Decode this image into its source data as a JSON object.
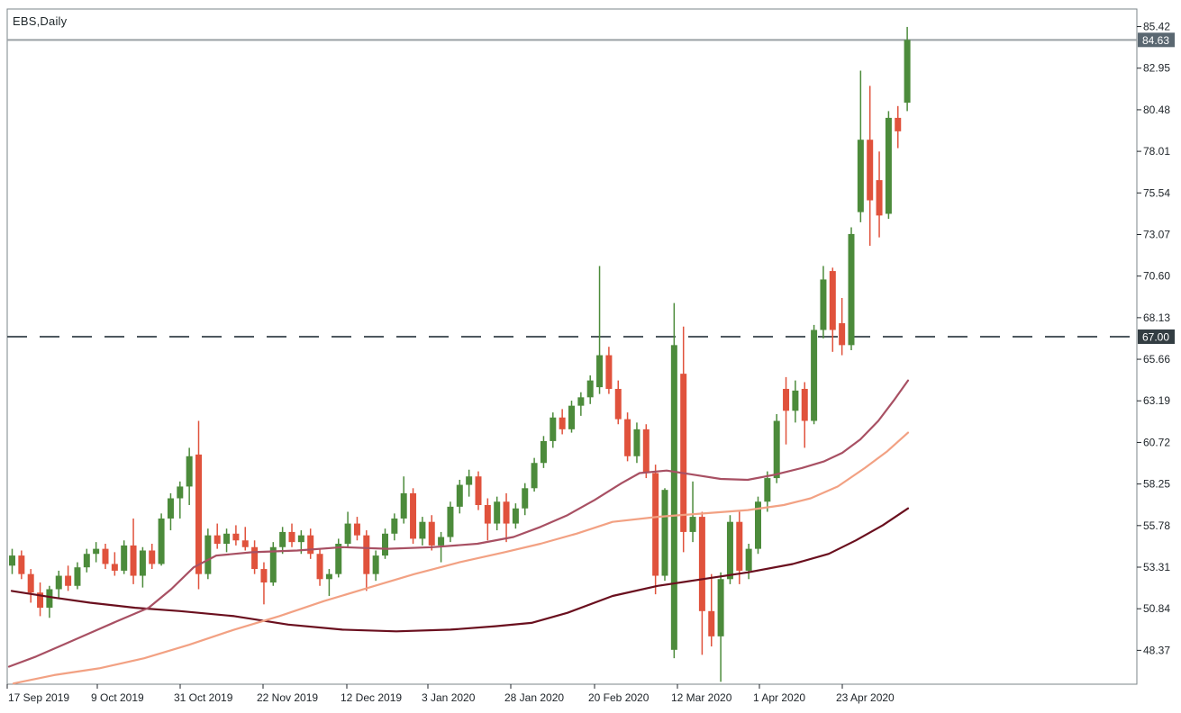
{
  "window": {
    "title": "EBS,Daily"
  },
  "chart_data": {
    "type": "candlestick",
    "symbol": "EBS",
    "timeframe": "Daily",
    "title": "EBS,Daily",
    "x_axis": {
      "labels": [
        "17 Sep 2019",
        "9 Oct 2019",
        "31 Oct 2019",
        "22 Nov 2019",
        "12 Dec 2019",
        "3 Jan 2020",
        "28 Jan 2020",
        "20 Feb 2020",
        "12 Mar 2020",
        "1 Apr 2020",
        "23 Apr 2020"
      ],
      "tick_x": [
        3,
        103,
        195,
        287,
        380,
        470,
        562,
        655,
        747,
        838,
        930
      ]
    },
    "y_axis": {
      "labels": [
        "85.42",
        "82.95",
        "80.48",
        "78.01",
        "75.54",
        "73.07",
        "70.60",
        "68.13",
        "65.66",
        "63.19",
        "60.72",
        "58.25",
        "55.78",
        "53.31",
        "50.84",
        "48.37"
      ],
      "range": [
        46.0,
        86.2
      ],
      "grid": "off"
    },
    "price_lines": [
      {
        "label": "84.63",
        "price": 84.63,
        "style": "solid",
        "line_color": "#9aa1a5",
        "box_color": "#5a6771",
        "name": "bid-price-line"
      },
      {
        "label": "67.00",
        "price": 67.0,
        "style": "dashed",
        "line_color": "#4e585f",
        "box_color": "#333d42",
        "name": "horizontal-level-line"
      }
    ],
    "candles": {
      "ohlc_order": [
        "open",
        "high",
        "low",
        "close"
      ],
      "ohlc": [
        [
          53.4,
          54.4,
          52.9,
          54.0
        ],
        [
          54.0,
          54.3,
          52.6,
          52.9
        ],
        [
          52.9,
          53.2,
          51.2,
          51.8
        ],
        [
          51.8,
          52.4,
          50.4,
          50.9
        ],
        [
          50.9,
          52.2,
          50.3,
          52.0
        ],
        [
          52.0,
          53.1,
          51.5,
          52.8
        ],
        [
          52.8,
          53.4,
          51.9,
          52.2
        ],
        [
          52.2,
          53.6,
          52.0,
          53.3
        ],
        [
          53.3,
          54.4,
          53.0,
          54.1
        ],
        [
          54.1,
          54.8,
          53.6,
          54.4
        ],
        [
          54.4,
          54.7,
          53.2,
          53.5
        ],
        [
          53.5,
          54.2,
          52.8,
          53.1
        ],
        [
          53.1,
          54.9,
          52.9,
          54.6
        ],
        [
          54.6,
          56.2,
          52.3,
          52.8
        ],
        [
          52.8,
          54.5,
          52.1,
          54.3
        ],
        [
          54.3,
          54.7,
          53.2,
          53.5
        ],
        [
          53.5,
          56.5,
          53.4,
          56.2
        ],
        [
          56.2,
          57.7,
          55.5,
          57.4
        ],
        [
          57.4,
          58.4,
          56.2,
          58.1
        ],
        [
          58.1,
          60.4,
          57.0,
          59.9
        ],
        [
          60.0,
          62.0,
          52.0,
          52.9
        ],
        [
          52.9,
          55.6,
          52.6,
          55.2
        ],
        [
          55.2,
          55.9,
          54.4,
          54.7
        ],
        [
          54.7,
          55.6,
          54.2,
          55.3
        ],
        [
          55.3,
          55.8,
          54.6,
          54.9
        ],
        [
          54.9,
          55.7,
          54.3,
          54.5
        ],
        [
          54.5,
          54.9,
          52.9,
          53.2
        ],
        [
          53.2,
          53.6,
          51.1,
          52.4
        ],
        [
          52.4,
          54.8,
          52.2,
          54.5
        ],
        [
          54.5,
          55.7,
          54.1,
          55.4
        ],
        [
          55.4,
          55.9,
          54.5,
          54.8
        ],
        [
          54.8,
          55.5,
          54.1,
          55.2
        ],
        [
          55.2,
          55.6,
          53.8,
          54.1
        ],
        [
          54.1,
          54.4,
          52.2,
          52.6
        ],
        [
          52.6,
          53.2,
          51.6,
          52.9
        ],
        [
          52.9,
          55.0,
          52.7,
          54.7
        ],
        [
          54.7,
          56.6,
          54.5,
          55.9
        ],
        [
          55.9,
          56.3,
          54.9,
          55.2
        ],
        [
          55.2,
          55.5,
          51.9,
          52.9
        ],
        [
          52.9,
          54.3,
          52.5,
          54.0
        ],
        [
          54.0,
          55.6,
          53.8,
          55.3
        ],
        [
          55.3,
          56.5,
          54.9,
          56.2
        ],
        [
          56.2,
          58.7,
          55.9,
          57.7
        ],
        [
          57.7,
          58.0,
          54.7,
          55.0
        ],
        [
          55.0,
          56.3,
          54.6,
          56.0
        ],
        [
          56.0,
          56.4,
          54.3,
          54.6
        ],
        [
          54.6,
          55.4,
          53.6,
          55.1
        ],
        [
          55.1,
          57.2,
          54.8,
          56.9
        ],
        [
          56.9,
          58.5,
          56.5,
          58.2
        ],
        [
          58.2,
          59.1,
          57.5,
          58.7
        ],
        [
          58.7,
          59.0,
          56.7,
          57.0
        ],
        [
          57.0,
          57.4,
          54.9,
          55.9
        ],
        [
          55.9,
          57.5,
          55.5,
          57.2
        ],
        [
          57.2,
          57.7,
          54.8,
          55.9
        ],
        [
          55.9,
          57.1,
          55.6,
          56.8
        ],
        [
          56.8,
          58.3,
          56.4,
          58.0
        ],
        [
          58.0,
          59.8,
          57.8,
          59.5
        ],
        [
          59.5,
          61.1,
          59.2,
          60.8
        ],
        [
          60.8,
          62.5,
          60.4,
          62.2
        ],
        [
          62.2,
          62.7,
          61.2,
          61.5
        ],
        [
          61.5,
          63.2,
          61.3,
          62.9
        ],
        [
          62.9,
          63.7,
          62.3,
          63.4
        ],
        [
          63.4,
          64.7,
          63.0,
          64.4
        ],
        [
          64.0,
          71.2,
          63.6,
          65.9
        ],
        [
          65.9,
          66.4,
          63.6,
          63.9
        ],
        [
          63.9,
          64.4,
          61.8,
          62.1
        ],
        [
          62.1,
          62.5,
          59.6,
          59.9
        ],
        [
          59.9,
          61.9,
          59.5,
          61.5
        ],
        [
          61.5,
          61.8,
          58.6,
          58.9
        ],
        [
          58.9,
          59.4,
          51.7,
          52.8
        ],
        [
          52.8,
          58.0,
          52.5,
          57.9
        ],
        [
          48.4,
          69.0,
          47.9,
          66.5
        ],
        [
          64.8,
          67.6,
          54.2,
          55.4
        ],
        [
          55.4,
          58.4,
          54.8,
          56.3
        ],
        [
          56.3,
          56.6,
          48.1,
          50.7
        ],
        [
          50.7,
          52.9,
          48.6,
          49.2
        ],
        [
          49.2,
          53.0,
          46.5,
          52.6
        ],
        [
          52.6,
          56.4,
          52.3,
          56.0
        ],
        [
          56.0,
          56.6,
          52.3,
          53.1
        ],
        [
          53.1,
          54.7,
          52.6,
          54.4
        ],
        [
          54.4,
          57.5,
          54.1,
          57.2
        ],
        [
          57.2,
          59.0,
          56.6,
          58.6
        ],
        [
          58.6,
          62.4,
          58.3,
          62.0
        ],
        [
          63.9,
          64.6,
          60.6,
          62.6
        ],
        [
          62.6,
          64.4,
          61.9,
          63.8
        ],
        [
          63.9,
          64.3,
          60.4,
          62.0
        ],
        [
          62.0,
          67.7,
          61.8,
          67.4
        ],
        [
          67.4,
          71.2,
          66.9,
          70.4
        ],
        [
          70.9,
          71.1,
          66.1,
          67.4
        ],
        [
          67.8,
          69.3,
          65.9,
          66.5
        ],
        [
          66.5,
          73.5,
          66.2,
          73.1
        ],
        [
          74.4,
          82.8,
          73.8,
          78.7
        ],
        [
          78.7,
          81.9,
          72.4,
          75.1
        ],
        [
          76.3,
          78.0,
          72.9,
          74.2
        ],
        [
          74.3,
          80.4,
          74.0,
          80.0
        ],
        [
          80.0,
          80.7,
          78.2,
          79.2
        ],
        [
          80.9,
          85.4,
          80.4,
          84.63
        ]
      ]
    },
    "moving_averages": [
      {
        "name": "slow-ma",
        "color": "#6a0f1e",
        "points": [
          [
            13,
            51.9
          ],
          [
            60,
            51.5
          ],
          [
            100,
            51.2
          ],
          [
            150,
            50.9
          ],
          [
            200,
            50.7
          ],
          [
            260,
            50.4
          ],
          [
            320,
            49.9
          ],
          [
            380,
            49.6
          ],
          [
            440,
            49.5
          ],
          [
            500,
            49.6
          ],
          [
            550,
            49.8
          ],
          [
            590,
            50.0
          ],
          [
            630,
            50.6
          ],
          [
            680,
            51.6
          ],
          [
            730,
            52.2
          ],
          [
            780,
            52.6
          ],
          [
            830,
            53.0
          ],
          [
            880,
            53.5
          ],
          [
            920,
            54.1
          ],
          [
            950,
            54.9
          ],
          [
            980,
            55.8
          ],
          [
            1008,
            56.8
          ]
        ]
      },
      {
        "name": "medium-ma",
        "color": "#f2a183",
        "points": [
          [
            15,
            46.4
          ],
          [
            60,
            46.9
          ],
          [
            110,
            47.3
          ],
          [
            160,
            47.9
          ],
          [
            210,
            48.7
          ],
          [
            260,
            49.6
          ],
          [
            310,
            50.4
          ],
          [
            360,
            51.3
          ],
          [
            410,
            52.1
          ],
          [
            460,
            52.9
          ],
          [
            510,
            53.6
          ],
          [
            560,
            54.2
          ],
          [
            600,
            54.7
          ],
          [
            640,
            55.3
          ],
          [
            680,
            56.0
          ],
          [
            730,
            56.3
          ],
          [
            780,
            56.5
          ],
          [
            830,
            56.7
          ],
          [
            870,
            57.0
          ],
          [
            900,
            57.4
          ],
          [
            930,
            58.1
          ],
          [
            960,
            59.2
          ],
          [
            985,
            60.2
          ],
          [
            1008,
            61.3
          ]
        ]
      },
      {
        "name": "fast-ma",
        "color": "#a85063",
        "points": [
          [
            10,
            47.4
          ],
          [
            40,
            48.0
          ],
          [
            70,
            48.7
          ],
          [
            100,
            49.4
          ],
          [
            130,
            50.1
          ],
          [
            165,
            50.9
          ],
          [
            190,
            52.0
          ],
          [
            215,
            53.3
          ],
          [
            240,
            54.0
          ],
          [
            280,
            54.2
          ],
          [
            330,
            54.3
          ],
          [
            380,
            54.5
          ],
          [
            430,
            54.4
          ],
          [
            480,
            54.5
          ],
          [
            530,
            54.7
          ],
          [
            570,
            55.1
          ],
          [
            600,
            55.7
          ],
          [
            630,
            56.4
          ],
          [
            660,
            57.3
          ],
          [
            690,
            58.3
          ],
          [
            710,
            58.9
          ],
          [
            740,
            59.05
          ],
          [
            770,
            58.8
          ],
          [
            800,
            58.55
          ],
          [
            830,
            58.5
          ],
          [
            860,
            58.8
          ],
          [
            890,
            59.2
          ],
          [
            915,
            59.6
          ],
          [
            935,
            60.1
          ],
          [
            955,
            60.9
          ],
          [
            975,
            62.0
          ],
          [
            992,
            63.2
          ],
          [
            1008,
            64.4
          ]
        ]
      }
    ],
    "colors": {
      "up_candle": "#4c8b3b",
      "down_candle": "#e0523c",
      "frame": "#7b8488",
      "axis_text": "#20262b",
      "label_text_on_box": "#ffffff",
      "background": "#ffffff"
    }
  }
}
